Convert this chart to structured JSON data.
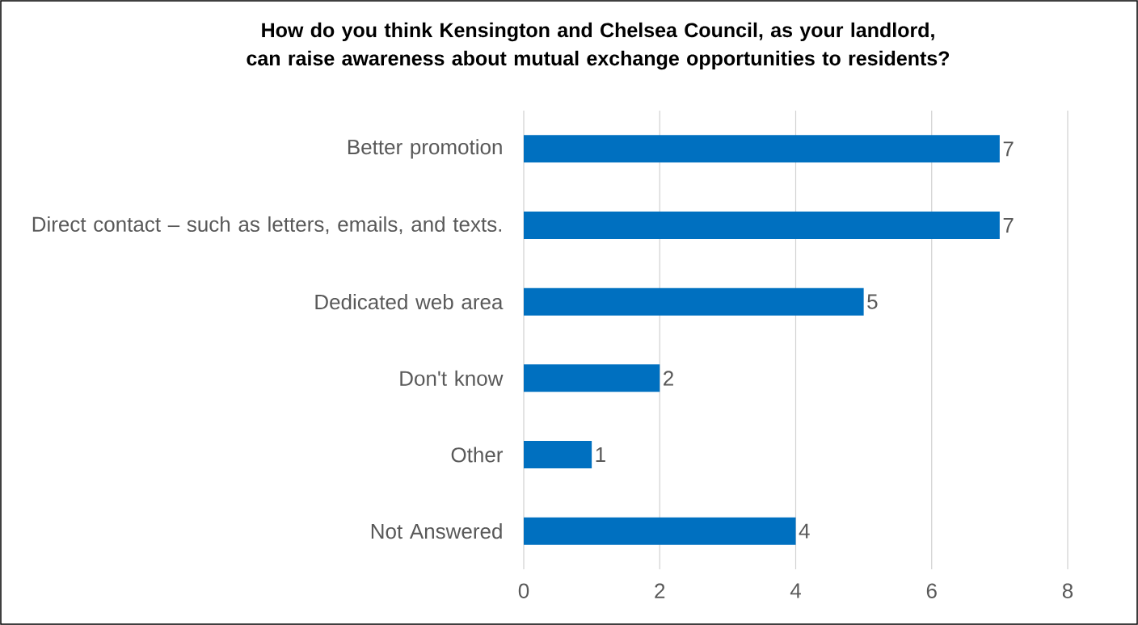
{
  "chart_data": {
    "type": "bar",
    "orientation": "horizontal",
    "title": "How do you think Kensington and Chelsea Council, as your landlord, can raise awareness about mutual exchange opportunities to residents?",
    "categories": [
      "Better promotion",
      "Direct contact  – such as letters, emails, and texts.",
      "Dedicated web area",
      "Don't know",
      "Other",
      "Not Answered"
    ],
    "values": [
      7,
      7,
      5,
      2,
      1,
      4
    ],
    "color": "#0070c0",
    "xlim": [
      0,
      8
    ],
    "xticks": [
      0,
      2,
      4,
      6,
      8
    ],
    "grid": "x",
    "data_labels": true
  }
}
